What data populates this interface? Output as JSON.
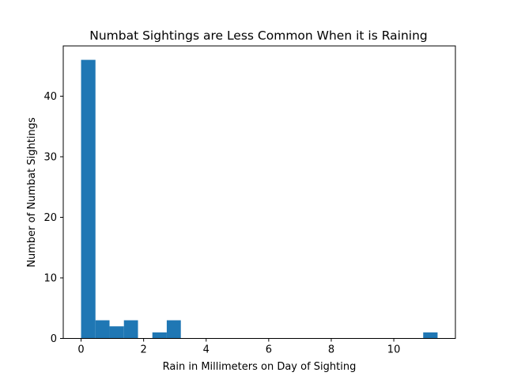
{
  "chart_data": {
    "type": "bar",
    "title": "Numbat Sightings are Less Common When it is Raining",
    "xlabel": "Rain in Millimeters on Day of Sighting",
    "ylabel": "Number of Numbat Sightings",
    "xlim": [
      -0.57,
      11.97
    ],
    "ylim": [
      0,
      48.3
    ],
    "xticks": [
      0,
      2,
      4,
      6,
      8,
      10
    ],
    "yticks": [
      0,
      10,
      20,
      30,
      40
    ],
    "bar_color": "#1f77b4",
    "grid": false,
    "bins": [
      {
        "start": 0.0,
        "end": 0.46,
        "count": 46
      },
      {
        "start": 0.46,
        "end": 0.91,
        "count": 3
      },
      {
        "start": 0.91,
        "end": 1.37,
        "count": 2
      },
      {
        "start": 1.37,
        "end": 1.82,
        "count": 3
      },
      {
        "start": 1.82,
        "end": 2.28,
        "count": 0
      },
      {
        "start": 2.28,
        "end": 2.74,
        "count": 1
      },
      {
        "start": 2.74,
        "end": 3.19,
        "count": 3
      },
      {
        "start": 3.19,
        "end": 3.65,
        "count": 0
      },
      {
        "start": 3.65,
        "end": 4.1,
        "count": 0
      },
      {
        "start": 4.1,
        "end": 4.56,
        "count": 0
      },
      {
        "start": 4.56,
        "end": 5.02,
        "count": 0
      },
      {
        "start": 5.02,
        "end": 5.47,
        "count": 0
      },
      {
        "start": 5.47,
        "end": 5.93,
        "count": 0
      },
      {
        "start": 5.93,
        "end": 6.38,
        "count": 0
      },
      {
        "start": 6.38,
        "end": 6.84,
        "count": 0
      },
      {
        "start": 6.84,
        "end": 7.3,
        "count": 0
      },
      {
        "start": 7.3,
        "end": 7.75,
        "count": 0
      },
      {
        "start": 7.75,
        "end": 8.21,
        "count": 0
      },
      {
        "start": 8.21,
        "end": 8.66,
        "count": 0
      },
      {
        "start": 8.66,
        "end": 9.12,
        "count": 0
      },
      {
        "start": 9.12,
        "end": 9.58,
        "count": 0
      },
      {
        "start": 9.58,
        "end": 10.03,
        "count": 0
      },
      {
        "start": 10.03,
        "end": 10.49,
        "count": 0
      },
      {
        "start": 10.49,
        "end": 10.94,
        "count": 0
      },
      {
        "start": 10.94,
        "end": 11.4,
        "count": 1
      }
    ]
  }
}
